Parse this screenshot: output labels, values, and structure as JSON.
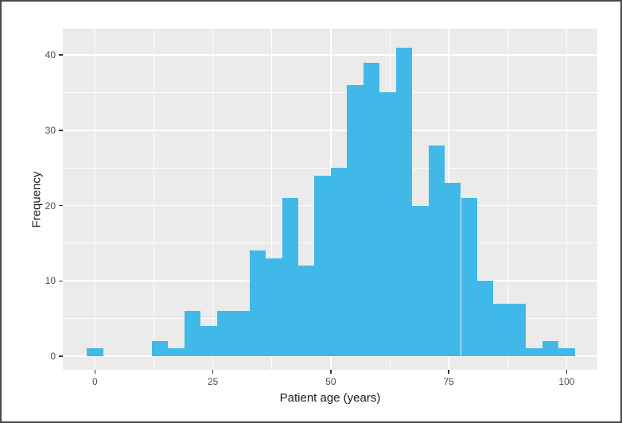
{
  "figure": {
    "background": "#FFFFFF",
    "frame_color": "#4A4A4A"
  },
  "chart_data": {
    "type": "bar",
    "subtype": "histogram",
    "title": "",
    "xlabel": "Patient age (years)",
    "ylabel": "Frequency",
    "bin_width": 3.448,
    "bin_centers": [
      0,
      3.45,
      6.9,
      10.34,
      13.79,
      17.24,
      20.69,
      24.14,
      27.59,
      31.03,
      34.48,
      37.93,
      41.38,
      44.83,
      48.28,
      51.72,
      55.17,
      58.62,
      62.07,
      65.52,
      68.97,
      72.41,
      75.86,
      79.31,
      82.76,
      86.21,
      89.66,
      93.1,
      96.55,
      100
    ],
    "values": [
      1,
      0,
      0,
      0,
      2,
      1,
      6,
      4,
      6,
      6,
      14,
      13,
      21,
      12,
      24,
      25,
      36,
      39,
      35,
      41,
      20,
      28,
      23,
      21,
      10,
      7,
      7,
      1,
      2,
      1
    ],
    "x_ticks": [
      0,
      25,
      50,
      75,
      100
    ],
    "x_minor_ticks": [
      12.5,
      37.5,
      62.5,
      87.5
    ],
    "y_ticks": [
      0,
      10,
      20,
      30,
      40
    ],
    "y_minor_ticks": [
      5,
      15,
      25,
      35
    ],
    "xlim": [
      -6.8,
      106.5
    ],
    "ylim": [
      -1.8,
      43.5
    ],
    "grid": true,
    "legend": false,
    "style": {
      "bar_fill": "#41B9E8",
      "panel_bg": "#EBEBEB",
      "grid_major_color": "#FFFFFF",
      "grid_minor_color": "#FFFFFF",
      "tick_label_color": "#4D4D4D",
      "axis_title_color": "#1A1A1A",
      "tick_mark_color": "#333333"
    }
  }
}
